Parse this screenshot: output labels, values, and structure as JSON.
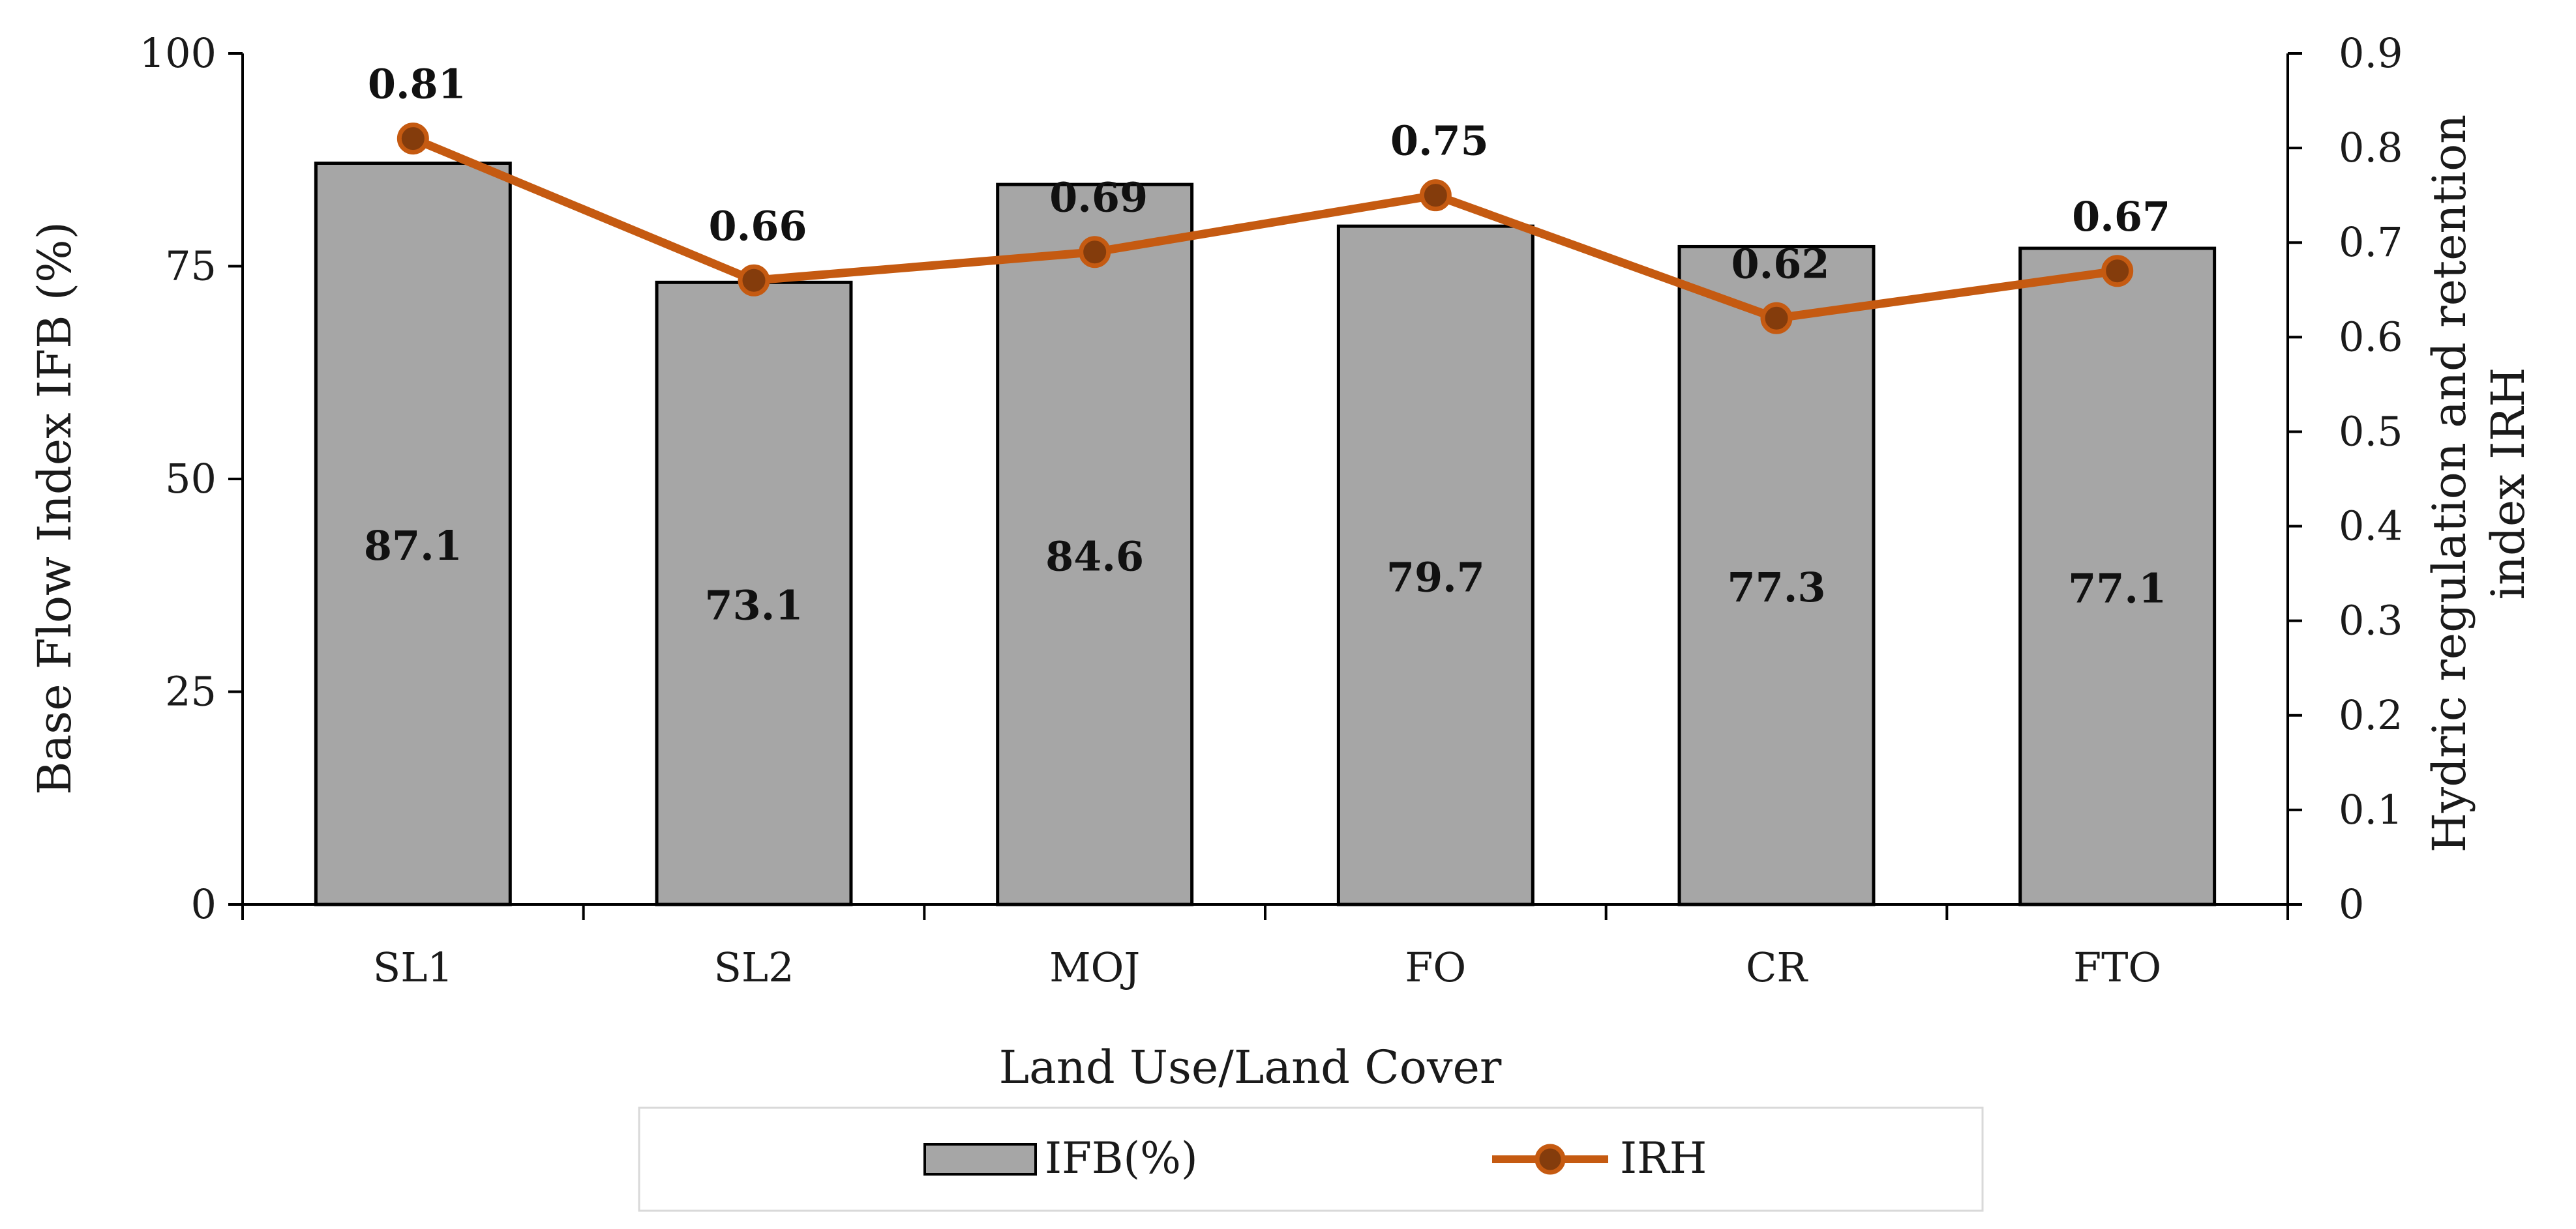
{
  "chart_data": {
    "type": "bar+line",
    "categories": [
      "SL1",
      "SL2",
      "MOJ",
      "FO",
      "CR",
      "FTO"
    ],
    "series": [
      {
        "name": "IFB(%)",
        "type": "bar",
        "axis": "left",
        "values": [
          87.1,
          73.1,
          84.6,
          79.7,
          77.3,
          77.1
        ],
        "labels": [
          "87.1",
          "73.1",
          "84.6",
          "79.7",
          "77.3",
          "77.1"
        ],
        "color": "#a6a6a6"
      },
      {
        "name": "IRH",
        "type": "line",
        "axis": "right",
        "values": [
          0.81,
          0.66,
          0.69,
          0.75,
          0.62,
          0.67
        ],
        "labels": [
          "0.81",
          "0.66",
          "0.69",
          "0.75",
          "0.62",
          "0.67"
        ],
        "color": "#c55a11"
      }
    ],
    "xlabel": "Land Use/Land Cover",
    "ylabel": "Base Flow Index IFB (%)",
    "y2label_line1": "Hydric regulation and retention",
    "y2label_line2": "index IRH",
    "ylim": [
      0,
      100
    ],
    "y2lim": [
      0,
      0.9
    ],
    "yticks": [
      "0",
      "25",
      "50",
      "75",
      "100"
    ],
    "y2ticks": [
      "0",
      "0.1",
      "0.2",
      "0.3",
      "0.4",
      "0.5",
      "0.6",
      "0.7",
      "0.8",
      "0.9"
    ],
    "grid": false,
    "legend_position": "bottom"
  }
}
